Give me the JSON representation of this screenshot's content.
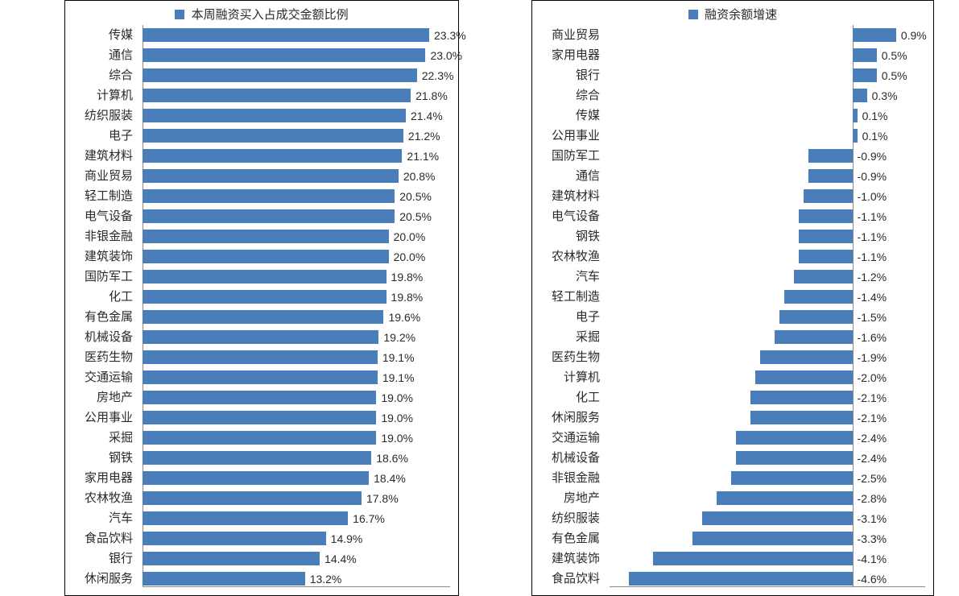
{
  "chart_left": {
    "type": "bar-horizontal",
    "legend_label": "本周融资买入占成交金额比例",
    "bar_color": "#4a7ebb",
    "text_color": "#2a2a2a",
    "label_fontsize": 15,
    "value_fontsize": 14,
    "xlim": [
      0,
      25
    ],
    "zero_at": 0,
    "categories": [
      "传媒",
      "通信",
      "综合",
      "计算机",
      "纺织服装",
      "电子",
      "建筑材料",
      "商业贸易",
      "轻工制造",
      "电气设备",
      "非银金融",
      "建筑装饰",
      "国防军工",
      "化工",
      "有色金属",
      "机械设备",
      "医药生物",
      "交通运输",
      "房地产",
      "公用事业",
      "采掘",
      "钢铁",
      "家用电器",
      "农林牧渔",
      "汽车",
      "食品饮料",
      "银行",
      "休闲服务"
    ],
    "values": [
      23.3,
      23.0,
      22.3,
      21.8,
      21.4,
      21.2,
      21.1,
      20.8,
      20.5,
      20.5,
      20.0,
      20.0,
      19.8,
      19.8,
      19.6,
      19.2,
      19.1,
      19.1,
      19.0,
      19.0,
      19.0,
      18.6,
      18.4,
      17.8,
      16.7,
      14.9,
      14.4,
      13.2
    ],
    "value_labels": [
      "23.3%",
      "23.0%",
      "22.3%",
      "21.8%",
      "21.4%",
      "21.2%",
      "21.1%",
      "20.8%",
      "20.5%",
      "20.5%",
      "20.0%",
      "20.0%",
      "19.8%",
      "19.8%",
      "19.6%",
      "19.2%",
      "19.1%",
      "19.1%",
      "19.0%",
      "19.0%",
      "19.0%",
      "18.6%",
      "18.4%",
      "17.8%",
      "16.7%",
      "14.9%",
      "14.4%",
      "13.2%"
    ]
  },
  "chart_right": {
    "type": "bar-horizontal",
    "legend_label": "融资余额增速",
    "bar_color": "#4a7ebb",
    "text_color": "#2a2a2a",
    "label_fontsize": 15,
    "value_fontsize": 14,
    "xlim": [
      -5,
      1.5
    ],
    "zero_at": 0,
    "categories": [
      "商业贸易",
      "家用电器",
      "银行",
      "综合",
      "传媒",
      "公用事业",
      "国防军工",
      "通信",
      "建筑材料",
      "电气设备",
      "钢铁",
      "农林牧渔",
      "汽车",
      "轻工制造",
      "电子",
      "采掘",
      "医药生物",
      "计算机",
      "化工",
      "休闲服务",
      "交通运输",
      "机械设备",
      "非银金融",
      "房地产",
      "纺织服装",
      "有色金属",
      "建筑装饰",
      "食品饮料"
    ],
    "values": [
      0.9,
      0.5,
      0.5,
      0.3,
      0.1,
      0.1,
      -0.9,
      -0.9,
      -1.0,
      -1.1,
      -1.1,
      -1.1,
      -1.2,
      -1.4,
      -1.5,
      -1.6,
      -1.9,
      -2.0,
      -2.1,
      -2.1,
      -2.4,
      -2.4,
      -2.5,
      -2.8,
      -3.1,
      -3.3,
      -4.1,
      -4.6
    ],
    "value_labels": [
      "0.9%",
      "0.5%",
      "0.5%",
      "0.3%",
      "0.1%",
      "0.1%",
      "-0.9%",
      "-0.9%",
      "-1.0%",
      "-1.1%",
      "-1.1%",
      "-1.1%",
      "-1.2%",
      "-1.4%",
      "-1.5%",
      "-1.6%",
      "-1.9%",
      "-2.0%",
      "-2.1%",
      "-2.1%",
      "-2.4%",
      "-2.4%",
      "-2.5%",
      "-2.8%",
      "-3.1%",
      "-3.3%",
      "-4.1%",
      "-4.6%"
    ]
  },
  "background_color": "#ffffff",
  "axis_color": "#888888",
  "border_color": "#000000"
}
